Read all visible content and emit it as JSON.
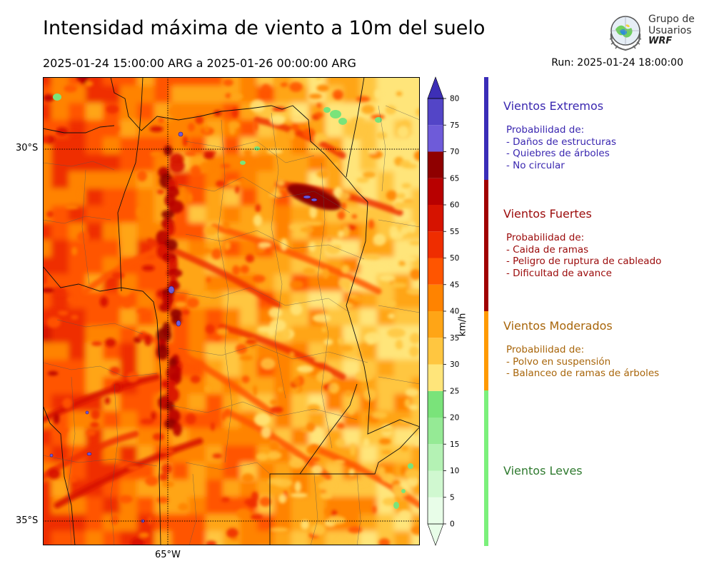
{
  "title": "Intensidad máxima de viento a 10m del suelo",
  "period": "2025-01-24 15:00:00 ARG  a  2025-01-26 00:00:00 ARG",
  "run": "Run: 2025-01-24 18:00:00",
  "logo": {
    "line1": "Grupo de",
    "line2": "Usuarios",
    "line3": "WRF"
  },
  "map": {
    "lat_labels": [
      "30°S",
      "35°S"
    ],
    "lon_labels": [
      "65°W"
    ],
    "graticule_style": "dotted-black",
    "field": "max 10m wind speed (km/h)"
  },
  "colorbar": {
    "unit": "km/h",
    "ticks": [
      "0",
      "5",
      "10",
      "15",
      "20",
      "25",
      "30",
      "35",
      "40",
      "45",
      "50",
      "55",
      "60",
      "65",
      "70",
      "75",
      "80"
    ],
    "colors": [
      "#e8fde8",
      "#d0f8d0",
      "#b4f2b4",
      "#95ea95",
      "#7ae37a",
      "#ffe57a",
      "#ffc640",
      "#ffa516",
      "#ff8300",
      "#ff5500",
      "#ef2d00",
      "#d61300",
      "#b80000",
      "#8f0000",
      "#6e5bd9",
      "#5345c7",
      "#3d2fb6"
    ]
  },
  "categories": [
    {
      "title": "Vientos Extremos",
      "color": "#3a27b0",
      "desc": [
        "Probabilidad de:",
        "- Daños de estructuras",
        "- Quiebres de árboles",
        "- No circular"
      ]
    },
    {
      "title": "Vientos Fuertes",
      "color": "#9b0a0a",
      "desc": [
        "Probabilidad de:",
        "- Caida de ramas",
        "- Peligro de ruptura de cableado",
        "- Dificultad de avance"
      ]
    },
    {
      "title": "Vientos Moderados",
      "color": "#a8650a",
      "desc": [
        "Probabilidad de:",
        "- Polvo en suspensión",
        "- Balanceo de ramas de árboles"
      ]
    },
    {
      "title": "Vientos Leves",
      "color": "#2f7a2f",
      "desc": []
    }
  ],
  "band_colors": [
    "#3a2db8",
    "#a00000",
    "#ff9a00",
    "#7cf07c"
  ]
}
